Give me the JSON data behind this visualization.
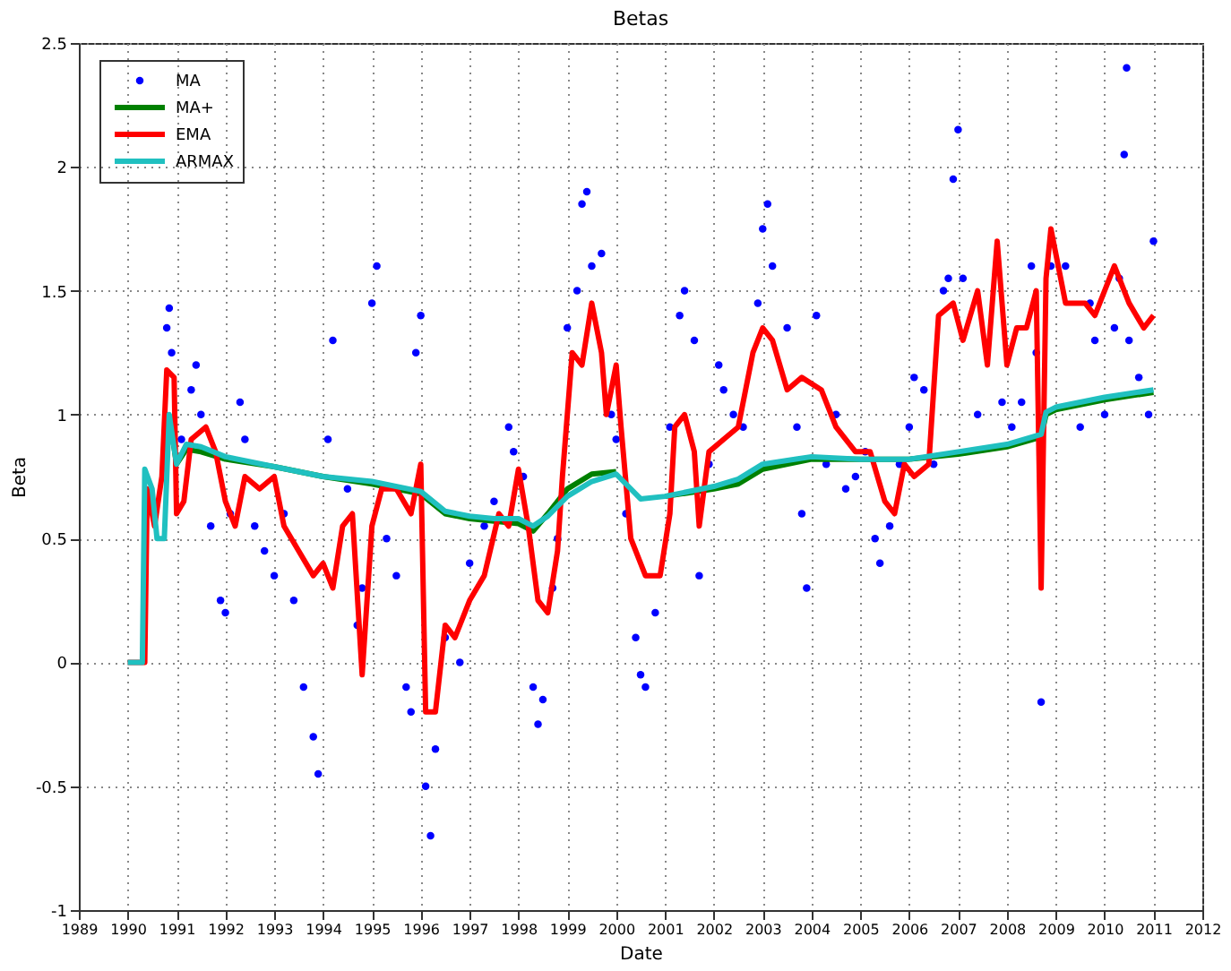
{
  "chart_data": {
    "type": "line",
    "title": "Betas",
    "xlabel": "Date",
    "ylabel": "Beta",
    "xlim": [
      1989,
      2012
    ],
    "xticks": [
      1989,
      1990,
      1991,
      1992,
      1993,
      1994,
      1995,
      1996,
      1997,
      1998,
      1999,
      2000,
      2001,
      2002,
      2003,
      2004,
      2005,
      2006,
      2007,
      2008,
      2009,
      2010,
      2011,
      2012
    ],
    "ylim": [
      -1,
      2.5
    ],
    "yticks": [
      -1,
      -0.5,
      0,
      0.5,
      1,
      1.5,
      2,
      2.5
    ],
    "grid": true,
    "legend": "top left",
    "series": [
      {
        "name": "MA",
        "type": "scatter",
        "color": "#0000ff",
        "x": [
          1990.8,
          1990.85,
          1990.9,
          1991.1,
          1991.3,
          1991.4,
          1991.5,
          1991.7,
          1991.9,
          1992.0,
          1992.1,
          1992.3,
          1992.4,
          1992.6,
          1992.8,
          1993.0,
          1993.2,
          1993.4,
          1993.6,
          1993.8,
          1993.9,
          1994.1,
          1994.2,
          1994.5,
          1994.7,
          1994.8,
          1995.0,
          1995.1,
          1995.3,
          1995.5,
          1995.7,
          1995.8,
          1995.9,
          1996.0,
          1996.1,
          1996.2,
          1996.3,
          1996.5,
          1996.8,
          1997.0,
          1997.3,
          1997.5,
          1997.8,
          1997.9,
          1998.1,
          1998.3,
          1998.4,
          1998.5,
          1998.7,
          1998.8,
          1999.0,
          1999.2,
          1999.3,
          1999.4,
          1999.5,
          1999.7,
          1999.9,
          2000.0,
          2000.2,
          2000.4,
          2000.5,
          2000.6,
          2000.8,
          2001.1,
          2001.3,
          2001.4,
          2001.6,
          2001.7,
          2001.9,
          2002.1,
          2002.2,
          2002.4,
          2002.6,
          2002.9,
          2003.0,
          2003.1,
          2003.2,
          2003.5,
          2003.7,
          2003.8,
          2003.9,
          2004.1,
          2004.3,
          2004.5,
          2004.7,
          2004.9,
          2005.1,
          2005.3,
          2005.4,
          2005.6,
          2005.8,
          2006.0,
          2006.1,
          2006.3,
          2006.5,
          2006.7,
          2006.8,
          2006.9,
          2007.0,
          2007.1,
          2007.4,
          2007.9,
          2008.1,
          2008.3,
          2008.5,
          2008.6,
          2008.7,
          2008.9,
          2009.2,
          2009.5,
          2009.7,
          2009.8,
          2010.0,
          2010.2,
          2010.3,
          2010.4,
          2010.45,
          2010.5,
          2010.7,
          2010.9,
          2011.0
        ],
        "values": [
          1.35,
          1.43,
          1.25,
          0.9,
          1.1,
          1.2,
          1.0,
          0.55,
          0.25,
          0.2,
          0.6,
          1.05,
          0.9,
          0.55,
          0.45,
          0.35,
          0.6,
          0.25,
          -0.1,
          -0.3,
          -0.45,
          0.9,
          1.3,
          0.7,
          0.15,
          0.3,
          1.45,
          1.6,
          0.5,
          0.35,
          -0.1,
          -0.2,
          1.25,
          1.4,
          -0.5,
          -0.7,
          -0.35,
          0.1,
          0.0,
          0.4,
          0.55,
          0.65,
          0.95,
          0.85,
          0.75,
          -0.1,
          -0.25,
          -0.15,
          0.3,
          0.5,
          1.35,
          1.5,
          1.85,
          1.9,
          1.6,
          1.65,
          1.0,
          0.9,
          0.6,
          0.1,
          -0.05,
          -0.1,
          0.2,
          0.95,
          1.4,
          1.5,
          1.3,
          0.35,
          0.8,
          1.2,
          1.1,
          1.0,
          0.95,
          1.45,
          1.75,
          1.85,
          1.6,
          1.35,
          0.95,
          0.6,
          0.3,
          1.4,
          0.8,
          1.0,
          0.7,
          0.75,
          0.85,
          0.5,
          0.4,
          0.55,
          0.8,
          0.95,
          1.15,
          1.1,
          0.8,
          1.5,
          1.55,
          1.95,
          2.15,
          1.55,
          1.0,
          1.05,
          0.95,
          1.05,
          1.6,
          1.25,
          -0.16,
          1.6,
          1.6,
          0.95,
          1.45,
          1.3,
          1.0,
          1.35,
          1.55,
          2.05,
          2.4,
          1.3,
          1.15,
          1.0,
          1.7
        ]
      },
      {
        "name": "MA+",
        "type": "line",
        "color": "#008000",
        "x": [
          1990.85,
          1991.0,
          1991.2,
          1991.5,
          1992,
          1993,
          1994,
          1995,
          1996,
          1996.5,
          1997,
          1997.5,
          1998,
          1998.3,
          1998.6,
          1999,
          1999.5,
          2000,
          2000.5,
          2001,
          2002,
          2002.5,
          2003,
          2004,
          2005,
          2006,
          2007,
          2008,
          2008.7,
          2008.8,
          2009,
          2010,
          2011
        ],
        "values": [
          1.0,
          0.8,
          0.86,
          0.85,
          0.82,
          0.79,
          0.75,
          0.72,
          0.68,
          0.6,
          0.58,
          0.57,
          0.56,
          0.53,
          0.6,
          0.7,
          0.76,
          0.77,
          null,
          0.67,
          0.7,
          0.72,
          0.78,
          0.82,
          0.82,
          0.82,
          0.84,
          0.87,
          0.91,
          1.0,
          1.02,
          1.06,
          1.09
        ]
      },
      {
        "name": "EMA",
        "type": "line",
        "color": "#ff0000",
        "x": [
          1990.0,
          1990.35,
          1990.4,
          1990.55,
          1990.7,
          1990.8,
          1990.95,
          1991.0,
          1991.15,
          1991.3,
          1991.6,
          1991.8,
          1992.0,
          1992.2,
          1992.4,
          1992.7,
          1993.0,
          1993.2,
          1993.5,
          1993.8,
          1994.0,
          1994.2,
          1994.4,
          1994.6,
          1994.8,
          1995.0,
          1995.2,
          1995.5,
          1995.8,
          1996.0,
          1996.1,
          1996.3,
          1996.5,
          1996.7,
          1997.0,
          1997.3,
          1997.6,
          1997.8,
          1998.0,
          1998.2,
          1998.4,
          1998.6,
          1998.8,
          1998.9,
          1999.1,
          1999.3,
          1999.5,
          1999.7,
          1999.8,
          2000.0,
          2000.1,
          2000.3,
          2000.6,
          2000.9,
          2001.1,
          2001.2,
          2001.4,
          2001.6,
          2001.7,
          2001.9,
          2002.2,
          2002.5,
          2002.8,
          2003.0,
          2003.2,
          2003.5,
          2003.8,
          2004.2,
          2004.5,
          2004.9,
          2005.2,
          2005.5,
          2005.7,
          2005.9,
          2006.1,
          2006.4,
          2006.6,
          2006.9,
          2007.1,
          2007.4,
          2007.6,
          2007.8,
          2008.0,
          2008.2,
          2008.4,
          2008.6,
          2008.7,
          2008.8,
          2008.9,
          2009.2,
          2009.6,
          2009.8,
          2010.2,
          2010.5,
          2010.8,
          2011.0
        ],
        "values": [
          0,
          0,
          0.7,
          0.55,
          0.75,
          1.18,
          1.15,
          0.6,
          0.65,
          0.9,
          0.95,
          0.85,
          0.65,
          0.55,
          0.75,
          0.7,
          0.75,
          0.55,
          0.45,
          0.35,
          0.4,
          0.3,
          0.55,
          0.6,
          -0.05,
          0.55,
          0.7,
          0.7,
          0.6,
          0.8,
          -0.2,
          -0.2,
          0.15,
          0.1,
          0.25,
          0.35,
          0.6,
          0.55,
          0.78,
          0.55,
          0.25,
          0.2,
          0.45,
          0.75,
          1.25,
          1.2,
          1.45,
          1.25,
          1.0,
          1.2,
          0.95,
          0.5,
          0.35,
          0.35,
          0.6,
          0.95,
          1.0,
          0.85,
          0.55,
          0.85,
          0.9,
          0.95,
          1.25,
          1.35,
          1.3,
          1.1,
          1.15,
          1.1,
          0.95,
          0.85,
          0.85,
          0.65,
          0.6,
          0.8,
          0.75,
          0.8,
          1.4,
          1.45,
          1.3,
          1.5,
          1.2,
          1.7,
          1.2,
          1.35,
          1.35,
          1.5,
          0.3,
          1.55,
          1.75,
          1.45,
          1.45,
          1.4,
          1.6,
          1.45,
          1.35,
          1.4
        ]
      },
      {
        "name": "ARMAX",
        "type": "line",
        "color": "#20c0c0",
        "x": [
          1990,
          1990.3,
          1990.35,
          1990.5,
          1990.6,
          1990.75,
          1990.85,
          1991.0,
          1991.2,
          1991.5,
          1992,
          1993,
          1994,
          1995,
          1996,
          1996.5,
          1997,
          1997.5,
          1998,
          1998.3,
          1998.6,
          1999,
          1999.5,
          2000,
          2000.5,
          2001,
          2002,
          2002.5,
          2003,
          2004,
          2005,
          2006,
          2007,
          2008,
          2008.7,
          2008.8,
          2009,
          2010,
          2011
        ],
        "values": [
          0,
          0,
          0.78,
          0.7,
          0.5,
          0.5,
          1.0,
          0.8,
          0.88,
          0.87,
          0.83,
          0.79,
          0.75,
          0.73,
          0.69,
          0.61,
          0.59,
          0.58,
          0.58,
          0.55,
          0.59,
          0.67,
          0.73,
          0.76,
          0.66,
          0.67,
          0.71,
          0.74,
          0.8,
          0.83,
          0.82,
          0.82,
          0.85,
          0.88,
          0.92,
          1.01,
          1.03,
          1.07,
          1.1
        ]
      }
    ]
  }
}
